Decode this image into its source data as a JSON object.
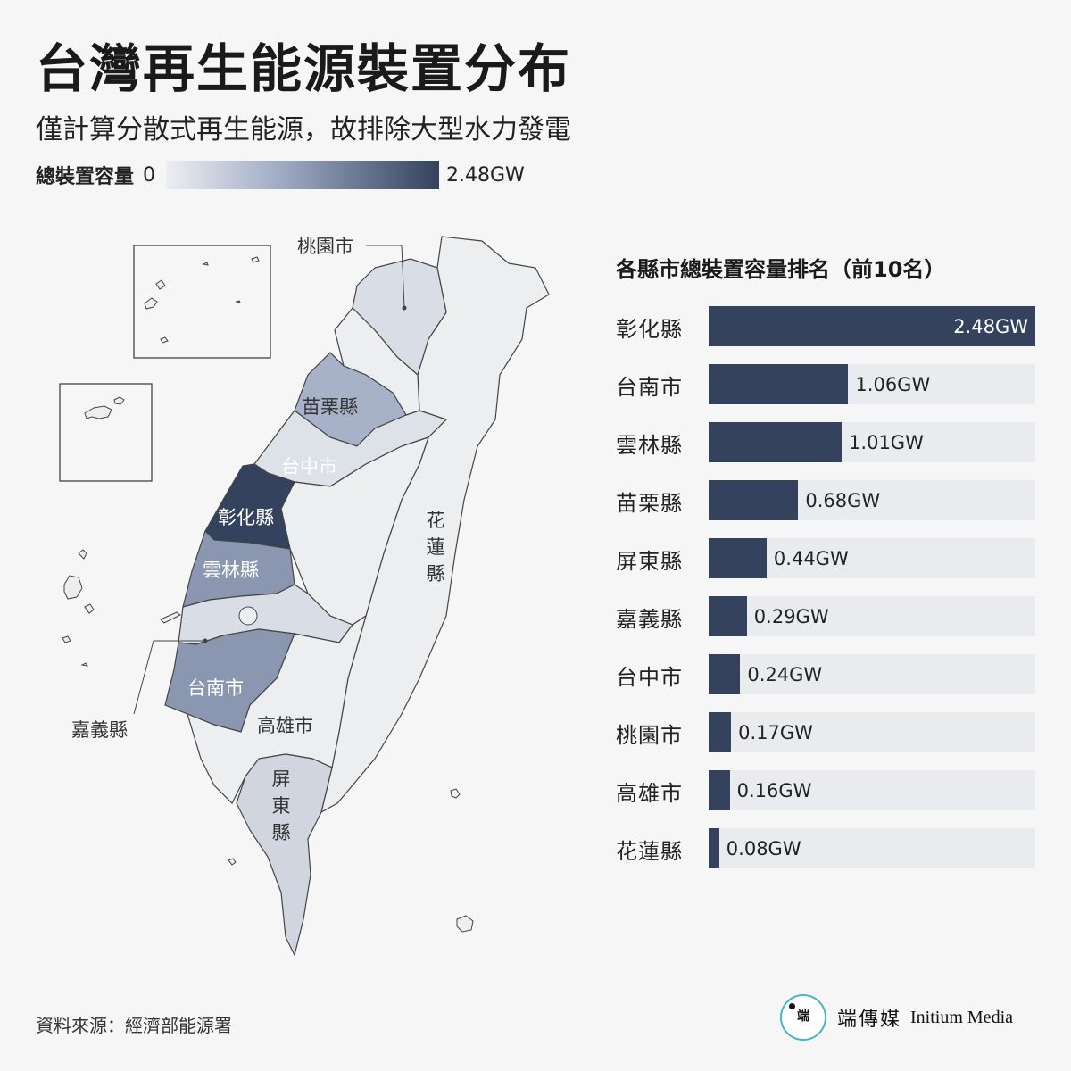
{
  "title": "台灣再生能源裝置分布",
  "subtitle": "僅計算分散式再生能源，故排除大型水力發電",
  "legend": {
    "label": "總裝置容量",
    "min_label": "0",
    "max_label": "2.48GW",
    "low_color": "#eceef2",
    "high_color": "#34425d"
  },
  "map": {
    "labels": {
      "taoyuan": "桃園市",
      "miaoli": "苗栗縣",
      "taichung": "台中市",
      "changhua": "彰化縣",
      "yunlin": "雲林縣",
      "chiayi": "嘉義縣",
      "tainan": "台南市",
      "kaohsiung": "高雄市",
      "pingtung": "屏東縣",
      "hualien": "花蓮縣"
    }
  },
  "ranking": {
    "title": "各縣市總裝置容量排名（前10名）",
    "max_value": 2.48,
    "bar_color": "#34425d",
    "track_color": "#e9ebee",
    "items": [
      {
        "name": "彰化縣",
        "value": 2.48,
        "label": "2.48GW"
      },
      {
        "name": "台南市",
        "value": 1.06,
        "label": "1.06GW"
      },
      {
        "name": "雲林縣",
        "value": 1.01,
        "label": "1.01GW"
      },
      {
        "name": "苗栗縣",
        "value": 0.68,
        "label": "0.68GW"
      },
      {
        "name": "屏東縣",
        "value": 0.44,
        "label": "0.44GW"
      },
      {
        "name": "嘉義縣",
        "value": 0.29,
        "label": "0.29GW"
      },
      {
        "name": "台中市",
        "value": 0.24,
        "label": "0.24GW"
      },
      {
        "name": "桃園市",
        "value": 0.17,
        "label": "0.17GW"
      },
      {
        "name": "高雄市",
        "value": 0.16,
        "label": "0.16GW"
      },
      {
        "name": "花蓮縣",
        "value": 0.08,
        "label": "0.08GW"
      }
    ]
  },
  "source": "資料來源：經濟部能源署",
  "brand": {
    "logo_text": "端",
    "name": "端傳媒",
    "english": "Initium Media",
    "accent_color": "#46b5c6"
  }
}
